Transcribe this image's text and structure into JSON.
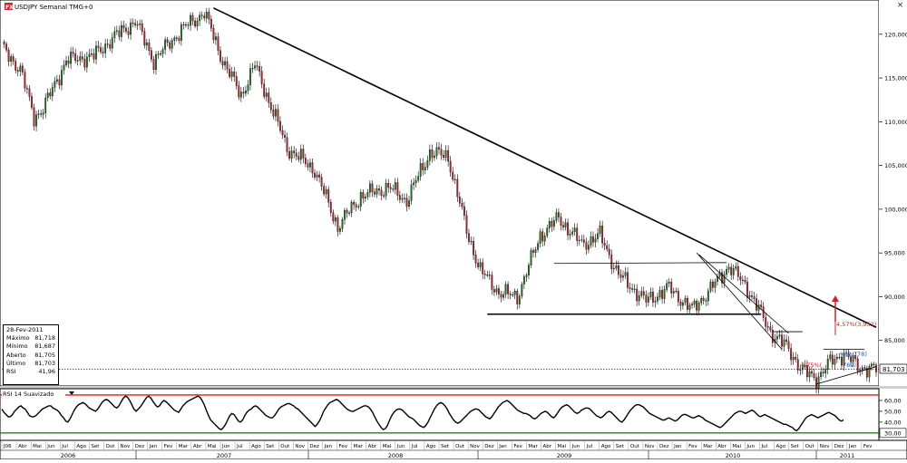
{
  "chart_title": "USDJPY Semanal TMG+0",
  "logo_text": "FX",
  "info_box": {
    "date": "28-Fev-2011",
    "rows": [
      {
        "label": "Máximo",
        "value": "81,718"
      },
      {
        "label": "Mínimo",
        "value": "81,687"
      },
      {
        "label": "Aberto",
        "value": "81,705"
      },
      {
        "label": "Último",
        "value": "81,703"
      },
      {
        "label": "RSI",
        "value": "41,96"
      }
    ]
  },
  "rsi_title": "RSI 14 Suavizado",
  "last_price_label": "81,703",
  "annotations": {
    "upper_target": "4,57%(3,952)",
    "mid_right": "%(2,778)",
    "lower": "4,75%(",
    "lower_right": "789)"
  },
  "colors": {
    "up_candle": "#1a7a1a",
    "down_candle": "#c41e28",
    "trendline": "#000000",
    "rsi_line": "#000000",
    "rsi_upper_band": "#d42020",
    "rsi_lower_band": "#1a8a1a",
    "target_arrow": "#d42020",
    "annotation_blue": "#2a4ec8"
  },
  "chart_data": [
    {
      "type": "candlestick",
      "title": "USDJPY Semanal TMG+0",
      "y_ticks": [
        "120,000",
        "115,000",
        "110,000",
        "105,000",
        "100,000",
        "95,000",
        "90,000",
        "85,000"
      ],
      "ylim": [
        80.0,
        123.5
      ],
      "x_month_labels": [
        "J06",
        "Abr",
        "Mai",
        "Jun",
        "Jul",
        "Ago",
        "Set",
        "Out",
        "Nov",
        "Dez",
        "Jan",
        "Fev",
        "Mar",
        "Abr",
        "Mai",
        "Jun",
        "Jul",
        "Ago",
        "Set",
        "Out",
        "Nov",
        "Dez",
        "Jan",
        "Fev",
        "Mar",
        "Abr",
        "Mai",
        "Jun",
        "Jul",
        "Ago",
        "Set",
        "Out",
        "Nov",
        "Dez",
        "Jan",
        "Fev",
        "Mar",
        "Abr",
        "Mai",
        "Jun",
        "Jul",
        "Ago",
        "Set",
        "Out",
        "Nov",
        "Dez",
        "Jan",
        "Fev",
        "Mar",
        "Abr",
        "Mai",
        "Jun",
        "Jul",
        "Ago",
        "Set",
        "Out",
        "Nov",
        "Dez",
        "Jan",
        "Fev"
      ],
      "x_year_labels": [
        "2006",
        "2007",
        "2008",
        "2009",
        "2010",
        "2011"
      ],
      "price_anchors": [
        {
          "w": 0,
          "p": 118.5
        },
        {
          "w": 8,
          "p": 116.0
        },
        {
          "w": 14,
          "p": 110.5
        },
        {
          "w": 18,
          "p": 111.5
        },
        {
          "w": 28,
          "p": 117.0
        },
        {
          "w": 40,
          "p": 117.5
        },
        {
          "w": 48,
          "p": 119.5
        },
        {
          "w": 58,
          "p": 121.5
        },
        {
          "w": 66,
          "p": 117.0
        },
        {
          "w": 78,
          "p": 120.5
        },
        {
          "w": 88,
          "p": 122.5
        },
        {
          "w": 96,
          "p": 117.0
        },
        {
          "w": 104,
          "p": 113.0
        },
        {
          "w": 110,
          "p": 116.5
        },
        {
          "w": 124,
          "p": 107.0
        },
        {
          "w": 136,
          "p": 104.5
        },
        {
          "w": 146,
          "p": 98.0
        },
        {
          "w": 156,
          "p": 101.5
        },
        {
          "w": 168,
          "p": 102.5
        },
        {
          "w": 176,
          "p": 101.0
        },
        {
          "w": 186,
          "p": 106.5
        },
        {
          "w": 194,
          "p": 106.0
        },
        {
          "w": 202,
          "p": 97.5
        },
        {
          "w": 208,
          "p": 93.0
        },
        {
          "w": 216,
          "p": 90.5
        },
        {
          "w": 224,
          "p": 90.0
        },
        {
          "w": 234,
          "p": 97.0
        },
        {
          "w": 242,
          "p": 99.0
        },
        {
          "w": 252,
          "p": 96.0
        },
        {
          "w": 260,
          "p": 97.0
        },
        {
          "w": 268,
          "p": 92.5
        },
        {
          "w": 280,
          "p": 89.5
        },
        {
          "w": 290,
          "p": 91.0
        },
        {
          "w": 300,
          "p": 88.5
        },
        {
          "w": 310,
          "p": 91.5
        },
        {
          "w": 316,
          "p": 93.5
        },
        {
          "w": 324,
          "p": 91.0
        },
        {
          "w": 334,
          "p": 86.0
        },
        {
          "w": 342,
          "p": 84.0
        },
        {
          "w": 348,
          "p": 81.5
        },
        {
          "w": 354,
          "p": 80.6
        },
        {
          "w": 360,
          "p": 82.5
        },
        {
          "w": 366,
          "p": 83.5
        },
        {
          "w": 372,
          "p": 82.0
        },
        {
          "w": 380,
          "p": 81.7
        }
      ],
      "trendlines": [
        {
          "from": {
            "w": 92,
            "p": 123.0
          },
          "to": {
            "w": 380,
            "p": 86.5
          }
        },
        {
          "from": {
            "w": 240,
            "p": 93.8
          },
          "to": {
            "w": 315,
            "p": 93.9
          }
        },
        {
          "from": {
            "w": 211,
            "p": 88.0
          },
          "to": {
            "w": 330,
            "p": 88.0
          }
        },
        {
          "from": {
            "w": 303,
            "p": 94.8
          },
          "to": {
            "w": 342,
            "p": 85.8
          }
        },
        {
          "from": {
            "w": 302,
            "p": 95.0
          },
          "to": {
            "w": 339,
            "p": 84.0
          }
        },
        {
          "from": {
            "w": 335,
            "p": 86.0
          },
          "to": {
            "w": 348,
            "p": 86.0
          }
        },
        {
          "from": {
            "w": 354,
            "p": 80.0
          },
          "to": {
            "w": 380,
            "p": 82.0
          }
        },
        {
          "from": {
            "w": 357,
            "p": 84.0
          },
          "to": {
            "w": 375,
            "p": 84.0
          }
        }
      ],
      "support_line": 81.703
    },
    {
      "type": "line",
      "title": "RSI 14 Suavizado",
      "y_ticks": [
        "60,00",
        "50,00",
        "40,00",
        "30,00"
      ],
      "ylim": [
        24,
        70
      ],
      "bands": [
        65,
        30
      ],
      "values": [
        52,
        49,
        47,
        45,
        45,
        47,
        50,
        52,
        54,
        55,
        53,
        52,
        49,
        46,
        45,
        45,
        46,
        48,
        50,
        52,
        53,
        54,
        55,
        55,
        53,
        52,
        51,
        49,
        46,
        44,
        41,
        40,
        43,
        47,
        51,
        54,
        56,
        57,
        58,
        57,
        55,
        53,
        52,
        51,
        50,
        52,
        55,
        58,
        60,
        61,
        60,
        58,
        56,
        54,
        53,
        55,
        59,
        62,
        64,
        63,
        60,
        56,
        52,
        50,
        52,
        54,
        57,
        60,
        63,
        64,
        62,
        59,
        56,
        54,
        55,
        58,
        60,
        59,
        57,
        55,
        53,
        51,
        50,
        49,
        52,
        55,
        57,
        59,
        60,
        61,
        62,
        63,
        64,
        63,
        60,
        56,
        51,
        46,
        42,
        40,
        38,
        36,
        34,
        33,
        35,
        38,
        42,
        46,
        48,
        47,
        44,
        41,
        40,
        42,
        46,
        49,
        51,
        52,
        54,
        55,
        54,
        52,
        50,
        48,
        46,
        45,
        44,
        44,
        46,
        49,
        52,
        54,
        55,
        56,
        57,
        57,
        56,
        55,
        53,
        52,
        50,
        48,
        46,
        44,
        42,
        40,
        38,
        36,
        38,
        41,
        45,
        50,
        53,
        56,
        58,
        59,
        60,
        61,
        60,
        58,
        56,
        54,
        52,
        51,
        50,
        50,
        51,
        52,
        53,
        54,
        55,
        55,
        54,
        52,
        49,
        45,
        41,
        38,
        35,
        33,
        34,
        37,
        42,
        46,
        49,
        51,
        52,
        52,
        51,
        49,
        47,
        45,
        44,
        43,
        41,
        39,
        37,
        36,
        35,
        37,
        40,
        44,
        48,
        52,
        55,
        57,
        58,
        57,
        55,
        52,
        48,
        45,
        42,
        40,
        39,
        40,
        42,
        44,
        46,
        48,
        50,
        51,
        52,
        52,
        51,
        49,
        47,
        45,
        44,
        43,
        45,
        48,
        51,
        54,
        56,
        58,
        59,
        60,
        59,
        57,
        55,
        53,
        51,
        50,
        49,
        48,
        48,
        47,
        46,
        44,
        43,
        44,
        46,
        48,
        49,
        50,
        49,
        47,
        45,
        44,
        46,
        49,
        52,
        54,
        55,
        56,
        55,
        53,
        51,
        49,
        48,
        49,
        51,
        52,
        53,
        53,
        52,
        50,
        48,
        46,
        45,
        44,
        45,
        47,
        49,
        50,
        49,
        47,
        45,
        43,
        41,
        40,
        42,
        45,
        48,
        51,
        53,
        55,
        56,
        56,
        55,
        54,
        52,
        50,
        48,
        47,
        46,
        45,
        44,
        43,
        42,
        42,
        43,
        44,
        43,
        42,
        41,
        42,
        44,
        46,
        47,
        47,
        46,
        45,
        44,
        44,
        45,
        46,
        45,
        44,
        42,
        41,
        40,
        39,
        38,
        37,
        36,
        35,
        36,
        38,
        40,
        42,
        44,
        46,
        48,
        49,
        50,
        50,
        49,
        48,
        49,
        50,
        51,
        50,
        48,
        46,
        45,
        46,
        47,
        46,
        45,
        44,
        43,
        42,
        41,
        40,
        39,
        38,
        38,
        37,
        36,
        35,
        33,
        32,
        34,
        37,
        40,
        43,
        45,
        46,
        47,
        46,
        45,
        44,
        45,
        46,
        47,
        48,
        49,
        48,
        47,
        46,
        44,
        42,
        41,
        42
      ],
      "last_value": "41,96"
    }
  ]
}
